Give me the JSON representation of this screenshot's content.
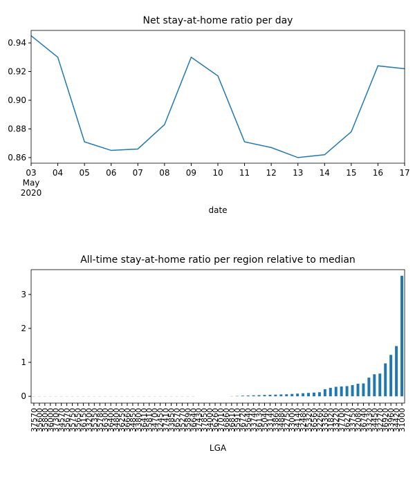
{
  "chart_data": [
    {
      "type": "line",
      "title": "Net stay-at-home ratio per day",
      "xlabel": "date",
      "x": [
        "2020-05-03",
        "2020-05-04",
        "2020-05-05",
        "2020-05-06",
        "2020-05-07",
        "2020-05-08",
        "2020-05-09",
        "2020-05-10",
        "2020-05-11",
        "2020-05-12",
        "2020-05-13",
        "2020-05-14",
        "2020-05-15",
        "2020-05-16",
        "2020-05-17"
      ],
      "series": [
        {
          "color": "#1f77b4",
          "values": [
            0.945,
            0.93,
            0.871,
            0.865,
            0.866,
            0.883,
            0.93,
            0.917,
            0.871,
            0.867,
            0.86,
            0.862,
            0.878,
            0.924,
            0.922
          ]
        }
      ],
      "xlim": [
        "2020-05-03",
        "2020-05-17"
      ],
      "xticks": [
        {
          "value": "2020-05-03",
          "label": "03\nMay\n2020"
        },
        {
          "value": "2020-05-04",
          "label": "04"
        },
        {
          "value": "2020-05-05",
          "label": "05"
        },
        {
          "value": "2020-05-06",
          "label": "06"
        },
        {
          "value": "2020-05-07",
          "label": "07"
        },
        {
          "value": "2020-05-08",
          "label": "08"
        },
        {
          "value": "2020-05-09",
          "label": "09"
        },
        {
          "value": "2020-05-10",
          "label": "10"
        },
        {
          "value": "2020-05-11",
          "label": "11"
        },
        {
          "value": "2020-05-12",
          "label": "12"
        },
        {
          "value": "2020-05-13",
          "label": "13"
        },
        {
          "value": "2020-05-14",
          "label": "14"
        },
        {
          "value": "2020-05-15",
          "label": "15"
        },
        {
          "value": "2020-05-16",
          "label": "16"
        },
        {
          "value": "2020-05-17",
          "label": "17"
        }
      ],
      "ylim": [
        0.8561,
        0.9487
      ],
      "yticks": [
        0.86,
        0.88,
        {
          "value": 0.9,
          "label": "0.90"
        },
        0.92,
        0.94
      ],
      "grid": false
    },
    {
      "type": "bar",
      "title": "All-time stay-at-home ratio per region relative to median",
      "xlabel": "LGA",
      "color": "#1f77b4",
      "categories": [
        "37570",
        "35600",
        "35800",
        "36000",
        "37300",
        "34570",
        "35670",
        "35750",
        "35650",
        "36150",
        "33200",
        "35350",
        "35780",
        "36300",
        "36400",
        "34800",
        "36250",
        "36660",
        "34850",
        "33800",
        "36410",
        "35810",
        "34700",
        "32450",
        "37410",
        "33850",
        "36570",
        "35270",
        "35890",
        "36640",
        "37430",
        "37850",
        "34000",
        "36260",
        "37010",
        "36860",
        "36810",
        "35910",
        "36720",
        "35640",
        "33740",
        "36130",
        "35040",
        "33140",
        "33860",
        "34880",
        "32750",
        "33000",
        "34140",
        "32480",
        "35320",
        "36560",
        "32260",
        "33360",
        "31820",
        "33220",
        "37700",
        "36270",
        "33750",
        "32080",
        "36740",
        "33230",
        "34450",
        "32270",
        "36920",
        "33960",
        "34420",
        "31000"
      ],
      "values": [
        0.004,
        0.004,
        0.004,
        0.004,
        0.004,
        0.004,
        0.004,
        0.004,
        0.004,
        0.004,
        0.004,
        0.004,
        0.004,
        0.004,
        0.004,
        0.004,
        0.004,
        0.004,
        0.004,
        0.004,
        0.004,
        0.004,
        0.004,
        0.004,
        0.004,
        0.004,
        0.004,
        0.004,
        0.004,
        0.004,
        0,
        0,
        0,
        0,
        0,
        0,
        0.005,
        0.01,
        0.02,
        0.025,
        0.03,
        0.035,
        0.04,
        0.045,
        0.05,
        0.055,
        0.06,
        0.07,
        0.08,
        0.09,
        0.1,
        0.11,
        0.12,
        0.21,
        0.25,
        0.28,
        0.29,
        0.3,
        0.33,
        0.37,
        0.38,
        0.55,
        0.65,
        0.67,
        0.97,
        1.22,
        1.48,
        3.55
      ],
      "ylim": [
        -0.2,
        3.73
      ],
      "yticks": [
        0,
        1,
        2,
        3
      ],
      "grid": false
    }
  ]
}
